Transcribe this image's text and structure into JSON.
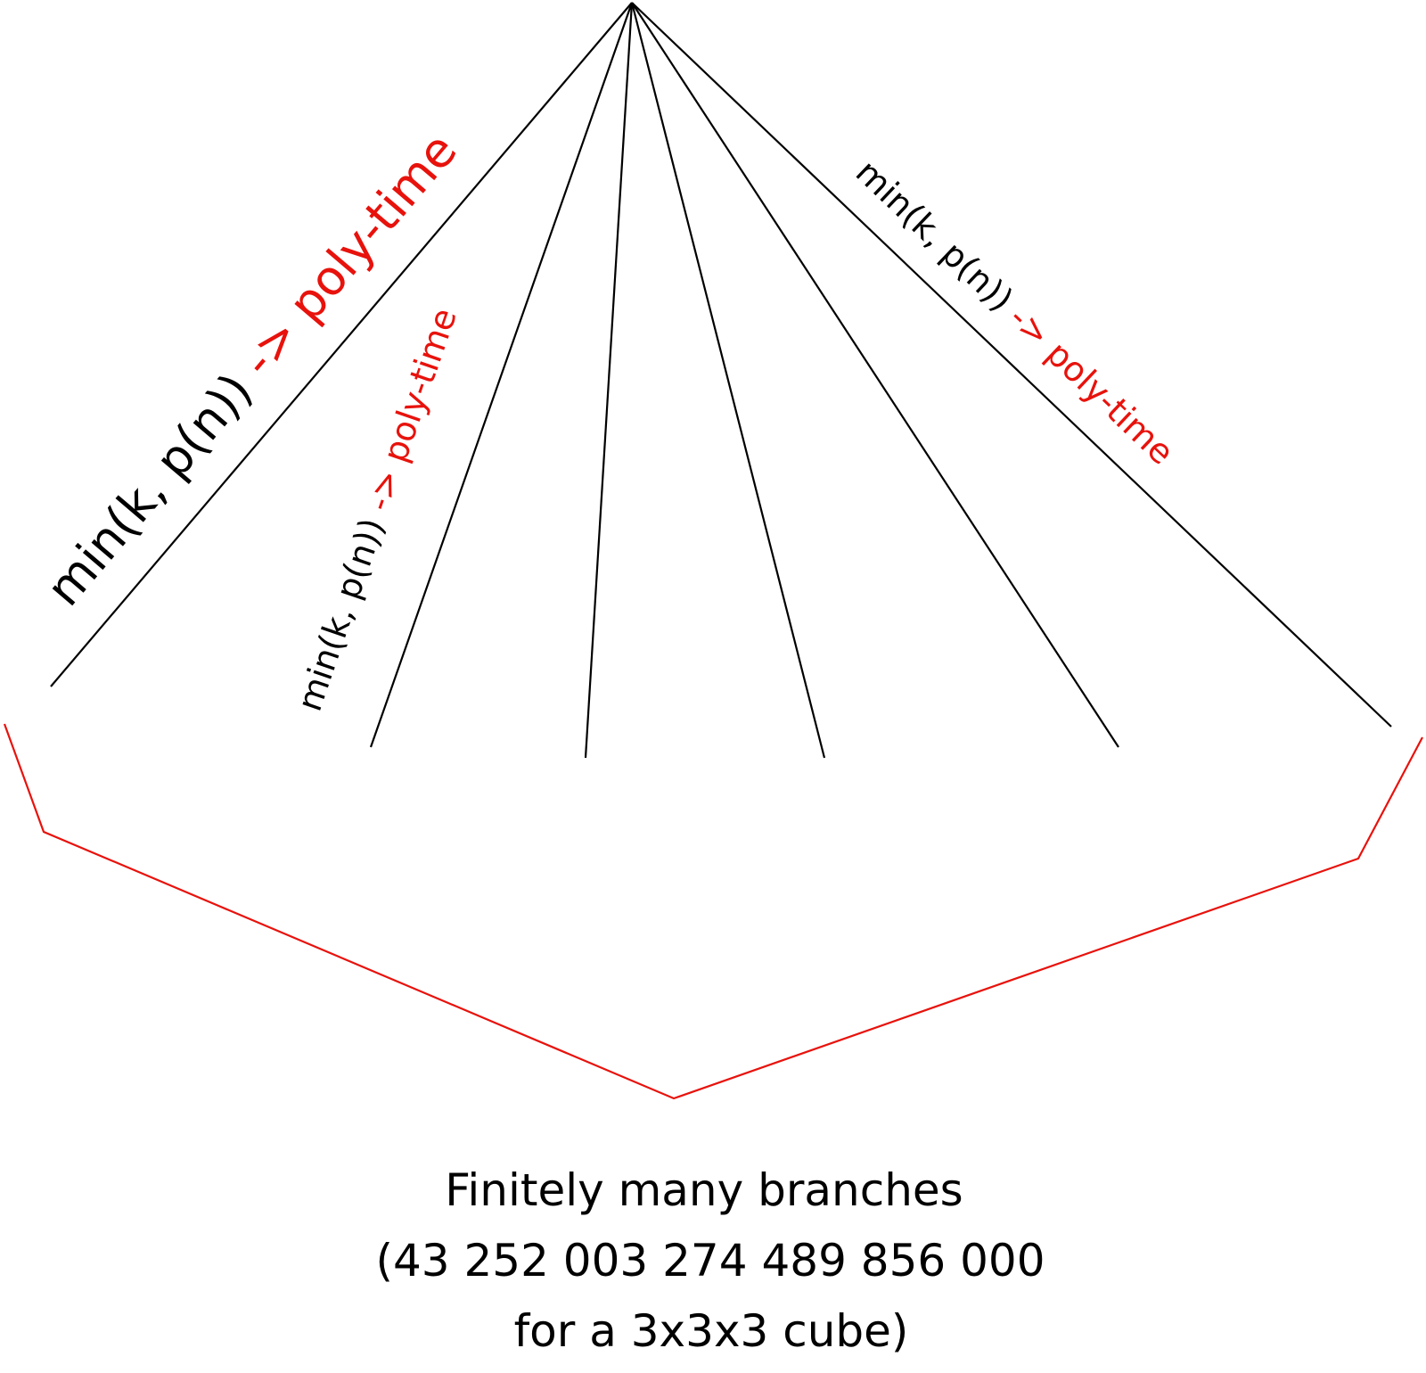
{
  "colors": {
    "line": "#000000",
    "accent": "#e8120c"
  },
  "labels": {
    "left": {
      "expr": "min(k, p(n))",
      "arrow": " ->",
      "result": " poly-time"
    },
    "inner_left": {
      "expr": "min(k, p(n))",
      "arrow": " ->",
      "result": " poly-time"
    },
    "right": {
      "expr": "min(k, p(n))",
      "arrow": " ->",
      "result": " poly-time"
    }
  },
  "caption": {
    "line1": "Finitely many branches",
    "line2": "(43 252 003 274 489 856 000",
    "line3": "for a 3x3x3 cube)"
  }
}
